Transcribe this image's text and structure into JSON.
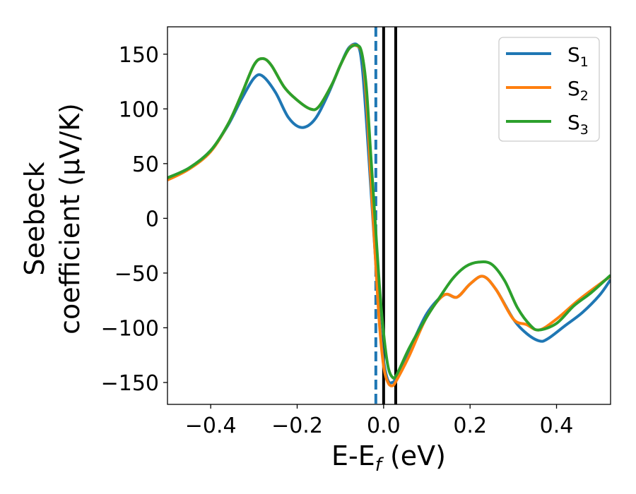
{
  "chart_data": {
    "type": "line",
    "xlabel": "E-E_f (eV)",
    "xlabel_main": "E-E",
    "xlabel_sub": "f",
    "xlabel_unit": " (eV)",
    "ylabel_line1": "Seebeck",
    "ylabel_line2": "coefficient  (μV/K)",
    "xlim": [
      -0.5,
      0.525
    ],
    "ylim": [
      -170,
      175
    ],
    "xticks": [
      -0.4,
      -0.2,
      0.0,
      0.2,
      0.4
    ],
    "xtick_labels": [
      "−0.4",
      "−0.2",
      "0.0",
      "0.2",
      "0.4"
    ],
    "yticks": [
      150,
      100,
      50,
      0,
      -50,
      -100,
      -150
    ],
    "ytick_labels": [
      "150",
      "100",
      "50",
      "0",
      "−50",
      "−100",
      "−150"
    ],
    "legend": {
      "placement": "top-right"
    },
    "vlines": [
      {
        "x": -0.018,
        "style": "dashed",
        "color": "#1f77b4"
      },
      {
        "x": 0.0,
        "style": "solid",
        "color": "#000000"
      },
      {
        "x": 0.028,
        "style": "solid",
        "color": "#000000"
      }
    ],
    "series": [
      {
        "name": "S_1",
        "label_main": "S",
        "label_sub": "1",
        "color": "#1f77b4",
        "x": [
          -0.5,
          -0.45,
          -0.4,
          -0.36,
          -0.33,
          -0.3,
          -0.28,
          -0.25,
          -0.22,
          -0.19,
          -0.16,
          -0.13,
          -0.1,
          -0.08,
          -0.06,
          -0.05,
          -0.04,
          -0.03,
          -0.02,
          -0.01,
          0.0,
          0.01,
          0.02,
          0.03,
          0.06,
          0.1,
          0.14,
          0.17,
          0.2,
          0.23,
          0.26,
          0.3,
          0.33,
          0.36,
          0.38,
          0.42,
          0.46,
          0.5,
          0.525
        ],
        "y": [
          37,
          46,
          62,
          85,
          108,
          128,
          130,
          115,
          92,
          83,
          90,
          112,
          140,
          156,
          158,
          140,
          90,
          30,
          -30,
          -90,
          -130,
          -148,
          -150,
          -145,
          -120,
          -87,
          -70,
          -72,
          -60,
          -53,
          -65,
          -92,
          -105,
          -112,
          -110,
          -98,
          -86,
          -70,
          -56
        ]
      },
      {
        "name": "S_2",
        "label_main": "S",
        "label_sub": "2",
        "color": "#ff7f0e",
        "x": [
          -0.5,
          -0.45,
          -0.4,
          -0.36,
          -0.33,
          -0.3,
          -0.28,
          -0.26,
          -0.23,
          -0.2,
          -0.17,
          -0.15,
          -0.12,
          -0.1,
          -0.08,
          -0.065,
          -0.05,
          -0.04,
          -0.03,
          -0.02,
          -0.01,
          0.0,
          0.01,
          0.02,
          0.03,
          0.06,
          0.1,
          0.14,
          0.17,
          0.2,
          0.23,
          0.26,
          0.3,
          0.33,
          0.36,
          0.4,
          0.45,
          0.5,
          0.525
        ],
        "y": [
          35,
          45,
          61,
          86,
          112,
          140,
          146,
          140,
          120,
          108,
          100,
          102,
          122,
          140,
          155,
          158,
          150,
          110,
          40,
          -30,
          -95,
          -135,
          -150,
          -153,
          -148,
          -125,
          -90,
          -70,
          -72,
          -60,
          -53,
          -65,
          -92,
          -97,
          -102,
          -92,
          -75,
          -60,
          -53
        ]
      },
      {
        "name": "S_3",
        "label_main": "S",
        "label_sub": "3",
        "color": "#2ca02c",
        "x": [
          -0.5,
          -0.45,
          -0.4,
          -0.36,
          -0.33,
          -0.3,
          -0.28,
          -0.26,
          -0.23,
          -0.2,
          -0.17,
          -0.15,
          -0.12,
          -0.1,
          -0.08,
          -0.06,
          -0.05,
          -0.04,
          -0.03,
          -0.02,
          -0.01,
          0.0,
          0.01,
          0.02,
          0.03,
          0.06,
          0.1,
          0.13,
          0.16,
          0.19,
          0.22,
          0.25,
          0.28,
          0.31,
          0.34,
          0.36,
          0.4,
          0.44,
          0.48,
          0.525
        ],
        "y": [
          37,
          46,
          62,
          86,
          112,
          140,
          146,
          140,
          120,
          108,
          100,
          102,
          122,
          140,
          155,
          158,
          150,
          120,
          60,
          0,
          -60,
          -105,
          -135,
          -145,
          -143,
          -118,
          -90,
          -72,
          -55,
          -44,
          -40,
          -42,
          -57,
          -82,
          -98,
          -102,
          -96,
          -80,
          -68,
          -52
        ]
      }
    ]
  }
}
